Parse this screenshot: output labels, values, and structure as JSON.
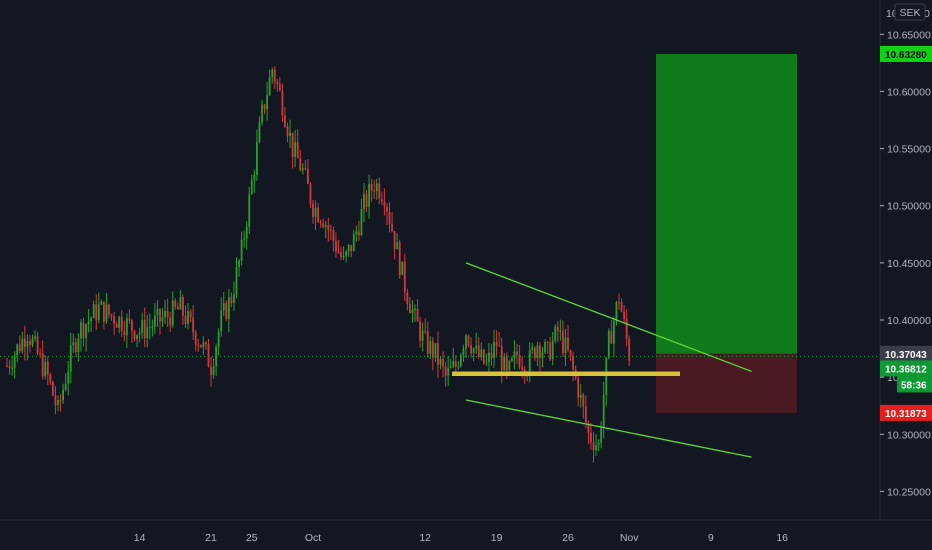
{
  "currency": "SEK",
  "top_price_label": "10.70000",
  "y_axis": {
    "min": 10.225,
    "max": 10.68,
    "ticks": [
      "10.25000",
      "10.30000",
      "10.35000",
      "10.40000",
      "10.45000",
      "10.50000",
      "10.55000",
      "10.60000",
      "10.65000"
    ]
  },
  "x_axis": {
    "ticks": [
      {
        "label": "14",
        "day": 14
      },
      {
        "label": "21",
        "day": 21
      },
      {
        "label": "25",
        "day": 25
      },
      {
        "label": "Oct",
        "day": 31
      },
      {
        "label": "12",
        "day": 42
      },
      {
        "label": "19",
        "day": 49
      },
      {
        "label": "26",
        "day": 56
      },
      {
        "label": "Nov",
        "day": 62
      },
      {
        "label": "9",
        "day": 70
      },
      {
        "label": "16",
        "day": 77
      }
    ]
  },
  "price_tags": [
    {
      "key": "target",
      "value": "10.63280",
      "price": 10.6328,
      "bg": "#12d312",
      "fg": "#000000"
    },
    {
      "key": "entry",
      "value": "10.37043",
      "price": 10.37043,
      "bg": "#3a3e48",
      "fg": "#ffffff"
    },
    {
      "key": "current",
      "value": "10.36812",
      "price": 10.36812,
      "bg": "#0c9a33",
      "fg": "#ffffff"
    },
    {
      "key": "stop",
      "value": "10.31873",
      "price": 10.31873,
      "bg": "#e61e1e",
      "fg": "#ffffff"
    }
  ],
  "countdown": "58:36",
  "colors": {
    "up": "#2aa12a",
    "down": "#d53a3a",
    "background": "#131722",
    "profit_zone": "#0f7a1a",
    "loss_zone": "#4a1a22",
    "trendline": "#5fd93b",
    "support": "#d6c33a"
  },
  "chart_data": {
    "type": "candlestick",
    "x_unit": "day (Sep 1 = day 1)",
    "series_close_points": [
      [
        1,
        10.36
      ],
      [
        3,
        10.39
      ],
      [
        5,
        10.35
      ],
      [
        6,
        10.32
      ],
      [
        7,
        10.36
      ],
      [
        8,
        10.39
      ],
      [
        10,
        10.41
      ],
      [
        12,
        10.4
      ],
      [
        14,
        10.39
      ],
      [
        16,
        10.4
      ],
      [
        18,
        10.41
      ],
      [
        20,
        10.38
      ],
      [
        21,
        10.36
      ],
      [
        22,
        10.4
      ],
      [
        23,
        10.42
      ],
      [
        24,
        10.46
      ],
      [
        25,
        10.52
      ],
      [
        26,
        10.58
      ],
      [
        27,
        10.62
      ],
      [
        28,
        10.59
      ],
      [
        29,
        10.55
      ],
      [
        30,
        10.53
      ],
      [
        31,
        10.5
      ],
      [
        32,
        10.49
      ],
      [
        33,
        10.47
      ],
      [
        34,
        10.45
      ],
      [
        35,
        10.47
      ],
      [
        36,
        10.5
      ],
      [
        37,
        10.52
      ],
      [
        38,
        10.51
      ],
      [
        39,
        10.47
      ],
      [
        40,
        10.43
      ],
      [
        41,
        10.4
      ],
      [
        42,
        10.38
      ],
      [
        43,
        10.37
      ],
      [
        44,
        10.35
      ],
      [
        45,
        10.36
      ],
      [
        46,
        10.39
      ],
      [
        47,
        10.37
      ],
      [
        48,
        10.36
      ],
      [
        49,
        10.38
      ],
      [
        50,
        10.35
      ],
      [
        51,
        10.37
      ],
      [
        52,
        10.36
      ],
      [
        53,
        10.38
      ],
      [
        54,
        10.37
      ],
      [
        55,
        10.39
      ],
      [
        56,
        10.37
      ],
      [
        57,
        10.34
      ],
      [
        58,
        10.3
      ],
      [
        59,
        10.29
      ],
      [
        60,
        10.38
      ],
      [
        61,
        10.42
      ],
      [
        62,
        10.37
      ]
    ],
    "trade": {
      "entry": 10.37043,
      "target": 10.6328,
      "stop": 10.31873,
      "current": 10.36812
    },
    "support_level": 10.353,
    "channel_upper": [
      [
        46,
        10.45
      ],
      [
        74,
        10.355
      ]
    ],
    "channel_lower": [
      [
        46,
        10.33
      ],
      [
        74,
        10.28
      ]
    ]
  }
}
